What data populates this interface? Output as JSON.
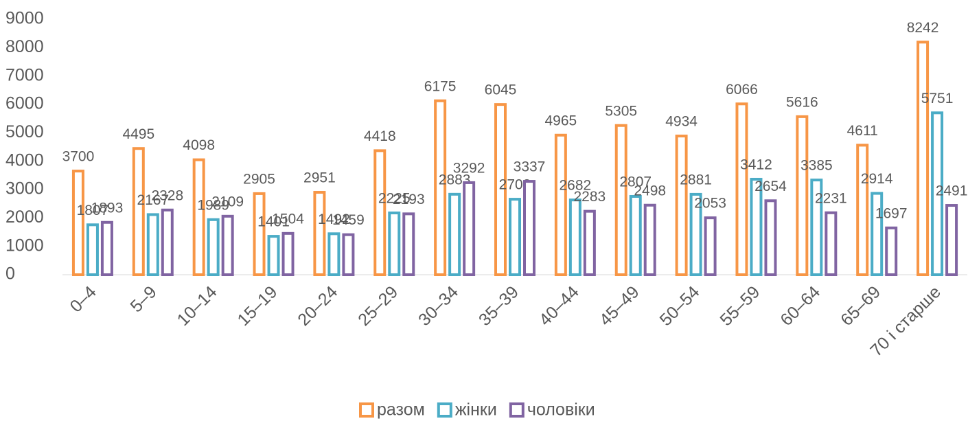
{
  "chart_data": {
    "type": "bar",
    "categories": [
      "0–4",
      "5–9",
      "10–14",
      "15–19",
      "20–24",
      "25–29",
      "30–34",
      "35–39",
      "40–44",
      "45–49",
      "50–54",
      "55–59",
      "60–64",
      "65–69",
      "70 і старше"
    ],
    "series": [
      {
        "name": "разом",
        "color": "#f79646",
        "values": [
          3700,
          4495,
          4098,
          2905,
          2951,
          4418,
          6175,
          6045,
          4965,
          5305,
          4934,
          6066,
          5616,
          4611,
          8242
        ]
      },
      {
        "name": "жінки",
        "color": "#4bacc6",
        "values": [
          1807,
          2167,
          1989,
          1401,
          1492,
          2225,
          2883,
          2708,
          2682,
          2807,
          2881,
          3412,
          3385,
          2914,
          5751
        ]
      },
      {
        "name": "чоловіки",
        "color": "#8064a2",
        "values": [
          1893,
          2328,
          2109,
          1504,
          1459,
          2193,
          3292,
          3337,
          2283,
          2498,
          2053,
          2654,
          2231,
          1697,
          2491
        ]
      }
    ],
    "ylim": [
      0,
      9000
    ],
    "yticks": [
      0,
      1000,
      2000,
      3000,
      4000,
      5000,
      6000,
      7000,
      8000,
      9000
    ],
    "grid": false,
    "legend": "bottom"
  }
}
